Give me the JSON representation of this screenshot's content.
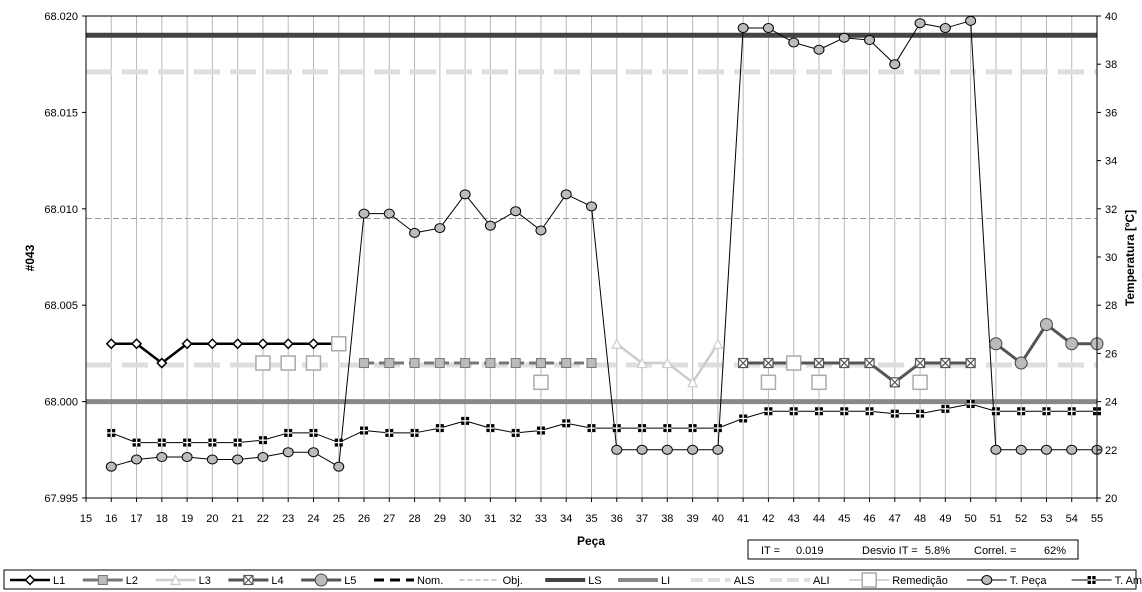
{
  "chart_data": {
    "type": "line",
    "xlabel": "Peça",
    "ylabel": "#043",
    "y2label": "Temperatura [ºC]",
    "x": [
      15,
      16,
      17,
      18,
      19,
      20,
      21,
      22,
      23,
      24,
      25,
      26,
      27,
      28,
      29,
      30,
      31,
      32,
      33,
      34,
      35,
      36,
      37,
      38,
      39,
      40,
      41,
      42,
      43,
      44,
      45,
      46,
      47,
      48,
      49,
      50,
      51,
      52,
      53,
      54,
      55
    ],
    "xlim": [
      15,
      55
    ],
    "ylim": [
      67.995,
      68.02
    ],
    "y2lim": [
      20,
      40
    ],
    "y_ticks": [
      "67.995",
      "68.000",
      "68.005",
      "68.010",
      "68.015",
      "68.020"
    ],
    "y2_ticks": [
      "20",
      "22",
      "24",
      "26",
      "28",
      "30",
      "32",
      "34",
      "36",
      "38",
      "40"
    ],
    "grid": "vertical",
    "legend_position": "bottom",
    "series": [
      {
        "name": "L1",
        "axis": "left",
        "color": "#000000",
        "marker": "diamond",
        "x": [
          16,
          17,
          18,
          19,
          20,
          21,
          22,
          23,
          24,
          25
        ],
        "values": [
          68.003,
          68.003,
          68.002,
          68.003,
          68.003,
          68.003,
          68.003,
          68.003,
          68.003,
          68.003
        ]
      },
      {
        "name": "L2",
        "axis": "left",
        "color": "#777777",
        "marker": "square",
        "x": [
          26,
          27,
          28,
          29,
          30,
          31,
          32,
          33,
          34,
          35
        ],
        "values": [
          68.002,
          68.002,
          68.002,
          68.002,
          68.002,
          68.002,
          68.002,
          68.002,
          68.002,
          68.002
        ]
      },
      {
        "name": "L3",
        "axis": "left",
        "color": "#cccccc",
        "marker": "triangle",
        "x": [
          36,
          37,
          38,
          39,
          40
        ],
        "values": [
          68.003,
          68.002,
          68.002,
          68.001,
          68.003
        ]
      },
      {
        "name": "L4",
        "axis": "left",
        "color": "#555555",
        "marker": "xsquare",
        "x": [
          41,
          42,
          43,
          44,
          45,
          46,
          47,
          48,
          49,
          50
        ],
        "values": [
          68.002,
          68.002,
          68.002,
          68.002,
          68.002,
          68.002,
          68.001,
          68.002,
          68.002,
          68.002
        ]
      },
      {
        "name": "L5",
        "axis": "left",
        "color": "#555555",
        "marker": "circle",
        "x": [
          51,
          52,
          53,
          54,
          55
        ],
        "values": [
          68.003,
          68.002,
          68.004,
          68.003,
          68.003
        ]
      },
      {
        "name": "Remedição",
        "axis": "left",
        "color": "#aaaaaa",
        "marker": "open-square",
        "x": [
          22,
          23,
          24,
          25,
          33,
          42,
          43,
          44,
          48
        ],
        "values": [
          68.002,
          68.002,
          68.002,
          68.003,
          68.001,
          68.001,
          68.002,
          68.001,
          68.001
        ]
      },
      {
        "name": "T. Peça",
        "axis": "right",
        "color": "#000000",
        "marker": "filled-circle",
        "x": [
          16,
          17,
          18,
          19,
          20,
          21,
          22,
          23,
          24,
          25,
          26,
          27,
          28,
          29,
          30,
          31,
          32,
          33,
          34,
          35,
          36,
          37,
          38,
          39,
          40,
          41,
          42,
          43,
          44,
          45,
          46,
          47,
          48,
          49,
          50,
          51,
          52,
          53,
          54,
          55
        ],
        "values": [
          21.3,
          21.6,
          21.7,
          21.7,
          21.6,
          21.6,
          21.7,
          21.9,
          21.9,
          21.3,
          31.8,
          31.8,
          31.0,
          31.2,
          32.6,
          31.3,
          31.9,
          31.1,
          32.6,
          32.1,
          22.0,
          22.0,
          22.0,
          22.0,
          22.0,
          39.5,
          39.5,
          38.9,
          38.6,
          39.1,
          39.0,
          38.0,
          39.7,
          39.5,
          39.8,
          22.0,
          22.0,
          22.0,
          22.0,
          22.0
        ]
      },
      {
        "name": "T. Amb.",
        "axis": "right",
        "color": "#000000",
        "marker": "filled-square-cross",
        "x": [
          16,
          17,
          18,
          19,
          20,
          21,
          22,
          23,
          24,
          25,
          26,
          27,
          28,
          29,
          30,
          31,
          32,
          33,
          34,
          35,
          36,
          37,
          38,
          39,
          40,
          41,
          42,
          43,
          44,
          45,
          46,
          47,
          48,
          49,
          50,
          51,
          52,
          53,
          54,
          55
        ],
        "values": [
          22.7,
          22.3,
          22.3,
          22.3,
          22.3,
          22.3,
          22.4,
          22.7,
          22.7,
          22.3,
          22.8,
          22.7,
          22.7,
          22.9,
          23.2,
          22.9,
          22.7,
          22.8,
          23.1,
          22.9,
          22.9,
          22.9,
          22.9,
          22.9,
          22.9,
          23.3,
          23.6,
          23.6,
          23.6,
          23.6,
          23.6,
          23.5,
          23.5,
          23.7,
          23.9,
          23.6,
          23.6,
          23.6,
          23.6,
          23.6
        ]
      }
    ],
    "reference_lines": [
      {
        "name": "Nom.",
        "axis": "left",
        "value": 68.0
      },
      {
        "name": "Obj.",
        "axis": "left",
        "value": 68.0095,
        "color": "#999999",
        "style": "dashed"
      },
      {
        "name": "LS",
        "axis": "left",
        "value": 68.019,
        "color": "#444444",
        "style": "solid-thick"
      },
      {
        "name": "LI",
        "axis": "left",
        "value": 68.0,
        "color": "#888888",
        "style": "solid-thick"
      },
      {
        "name": "ALS",
        "axis": "left",
        "value": 68.0171,
        "color": "#e0e0e0",
        "style": "dashed-thick"
      },
      {
        "name": "ALI",
        "axis": "left",
        "value": 68.0019,
        "color": "#e0e0e0",
        "style": "dashed-thick"
      }
    ],
    "stats": {
      "it_label": "IT =",
      "it_value": "0.019",
      "desvio_label": "Desvio IT =",
      "desvio_value": "5.8%",
      "correl_label": "Correl. =",
      "correl_value": "62%"
    }
  }
}
